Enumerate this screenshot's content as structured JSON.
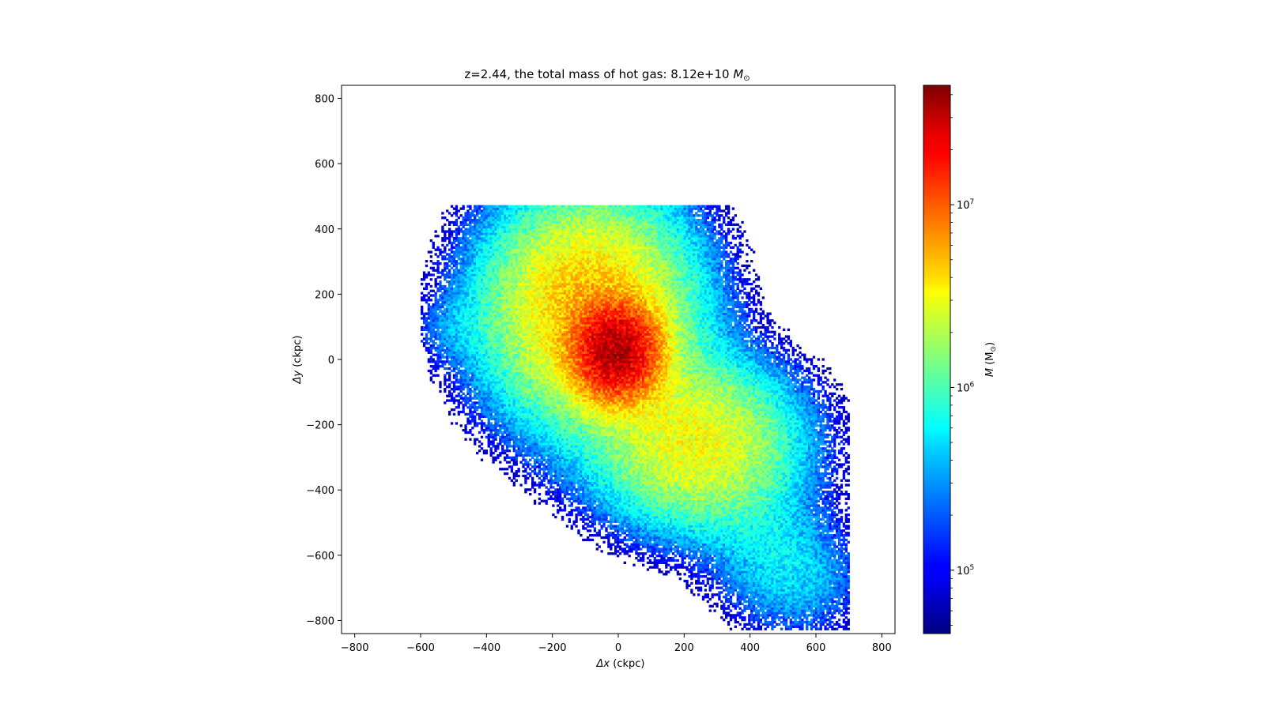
{
  "chart_data": {
    "type": "heatmap",
    "title": {
      "text": "z=2.44, the total mass of hot gas: 8.12e+10 ",
      "unit_symbol": "M",
      "unit_subscript": "⊙"
    },
    "xlabel": {
      "symbol": "Δx",
      "unit": " (ckpc)"
    },
    "ylabel": {
      "symbol": "Δy",
      "unit": " (ckpc)"
    },
    "xlim": [
      -840,
      840
    ],
    "ylim": [
      -840,
      840
    ],
    "xticks": [
      -800,
      -600,
      -400,
      -200,
      0,
      200,
      400,
      600,
      800
    ],
    "yticks": [
      -800,
      -600,
      -400,
      -200,
      0,
      200,
      400,
      600,
      800
    ],
    "grid": false,
    "colormap": "jet",
    "colorbar": {
      "label_symbol": "M",
      "label_unit": " (M",
      "label_subscript": "⊙",
      "label_close": ")",
      "scale": "log",
      "range": [
        45000,
        45000000
      ],
      "ticks": [
        {
          "base": "10",
          "exp": "5",
          "value": 100000
        },
        {
          "base": "10",
          "exp": "6",
          "value": 1000000
        },
        {
          "base": "10",
          "exp": "7",
          "value": 10000000
        }
      ]
    },
    "structure": {
      "main_axis": {
        "from": [
          -160,
          230
        ],
        "to": [
          560,
          -680
        ]
      },
      "blobs": [
        {
          "center": [
            -90,
            150
          ],
          "sigma": [
            170,
            190
          ],
          "peak_mass": 5000000
        },
        {
          "center": [
            -10,
            20
          ],
          "sigma": [
            70,
            80
          ],
          "peak_mass": 30000000
        },
        {
          "center": [
            230,
            -260
          ],
          "sigma": [
            170,
            140
          ],
          "peak_mass": 3000000
        },
        {
          "center": [
            480,
            -640
          ],
          "sigma": [
            120,
            110
          ],
          "peak_mass": 300000
        },
        {
          "center": [
            -500,
            90
          ],
          "sigma": [
            70,
            60
          ],
          "peak_mass": 200000
        }
      ],
      "extent_x": [
        -600,
        700
      ],
      "extent_y": [
        -830,
        470
      ]
    }
  }
}
